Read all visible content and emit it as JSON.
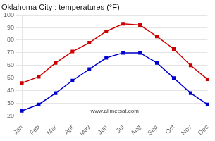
{
  "chart_data": {
    "type": "line",
    "title": "Oklahoma City : temperatures (°F)",
    "categories": [
      "Jan",
      "Feb",
      "Mar",
      "Apr",
      "May",
      "Jun",
      "Jul",
      "Aug",
      "Sep",
      "Oct",
      "Nov",
      "Dec"
    ],
    "series": [
      {
        "color": "#cc0000",
        "marker": "square",
        "line_style": "solid",
        "values": [
          46,
          51,
          62,
          71,
          78,
          87,
          93,
          92,
          83,
          73,
          60,
          49
        ]
      },
      {
        "color": "#0000cc",
        "marker": "square",
        "line_style": "solid",
        "values": [
          24,
          29,
          38,
          48,
          57,
          66,
          70,
          70,
          62,
          50,
          38,
          29
        ]
      }
    ],
    "ylim": [
      20,
      100
    ],
    "yticks": [
      20,
      30,
      40,
      50,
      60,
      70,
      80,
      90,
      100
    ],
    "grid": "y",
    "annotations": [
      "www.allmetsat.com"
    ]
  }
}
